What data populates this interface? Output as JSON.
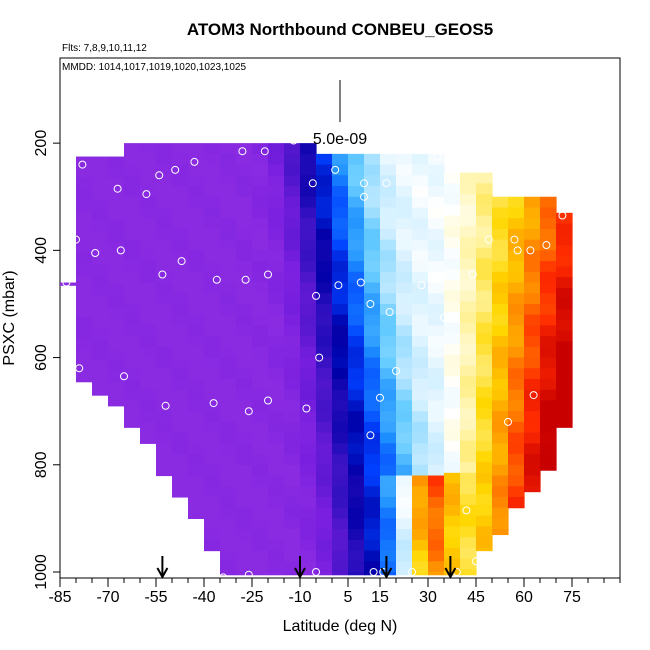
{
  "title": "ATOM3 Northbound CONBEU_GEOS5",
  "flights_text": "Flts: 7,8,9,10,11,12",
  "dates_text": "MMDD: 1014,1017,1019,1020,1023,1025",
  "scale_label": "5.0e-09",
  "chart_data": {
    "type": "heatmap",
    "xlabel": "Latitude (deg N)",
    "ylabel": "PSXC (mbar)",
    "xlim": [
      -85,
      90
    ],
    "ylim": [
      1000,
      30
    ],
    "x_ticks": [
      -85,
      -70,
      -55,
      -40,
      -25,
      -10,
      5,
      15,
      30,
      45,
      60,
      75
    ],
    "x_tick_labels": [
      "-85",
      "-70",
      "-55",
      "-40",
      "-25",
      "-10",
      "5",
      "15",
      "30",
      "45",
      "60",
      "75"
    ],
    "y_ticks": [
      200,
      400,
      600,
      800,
      1000
    ],
    "y_tick_labels": [
      "200",
      "400",
      "600",
      "800",
      "1000"
    ],
    "colorscale": [
      "#8a2be2",
      "#7a1fe0",
      "#5a18d0",
      "#3010c0",
      "#0000a8",
      "#0040ff",
      "#1e90ff",
      "#66ccff",
      "#c8ecff",
      "#ffffff",
      "#fff3a0",
      "#ffd700",
      "#ff8c00",
      "#ff2a00",
      "#c80000"
    ],
    "field_range": [
      0,
      1
    ],
    "bins_lat_width": 5,
    "columns": [
      {
        "lat": -85,
        "p_top": 460,
        "p_bot": 465
      },
      {
        "lat": -80,
        "p_top": 225,
        "p_bot": 645
      },
      {
        "lat": -75,
        "p_top": 225,
        "p_bot": 670
      },
      {
        "lat": -70,
        "p_top": 225,
        "p_bot": 690
      },
      {
        "lat": -65,
        "p_top": 200,
        "p_bot": 730
      },
      {
        "lat": -60,
        "p_top": 200,
        "p_bot": 760
      },
      {
        "lat": -55,
        "p_top": 200,
        "p_bot": 820
      },
      {
        "lat": -50,
        "p_top": 200,
        "p_bot": 860
      },
      {
        "lat": -45,
        "p_top": 200,
        "p_bot": 900
      },
      {
        "lat": -40,
        "p_top": 200,
        "p_bot": 960
      },
      {
        "lat": -35,
        "p_top": 200,
        "p_bot": 1005
      },
      {
        "lat": -30,
        "p_top": 200,
        "p_bot": 1005
      },
      {
        "lat": -25,
        "p_top": 200,
        "p_bot": 1005
      },
      {
        "lat": -20,
        "p_top": 200,
        "p_bot": 1005
      },
      {
        "lat": -15,
        "p_top": 200,
        "p_bot": 1005
      },
      {
        "lat": -10,
        "p_top": 200,
        "p_bot": 1005
      },
      {
        "lat": -5,
        "p_top": 220,
        "p_bot": 1005
      },
      {
        "lat": 0,
        "p_top": 220,
        "p_bot": 1005
      },
      {
        "lat": 5,
        "p_top": 220,
        "p_bot": 1005
      },
      {
        "lat": 10,
        "p_top": 220,
        "p_bot": 1005
      },
      {
        "lat": 15,
        "p_top": 220,
        "p_bot": 1005
      },
      {
        "lat": 20,
        "p_top": 220,
        "p_bot": 1005
      },
      {
        "lat": 25,
        "p_top": 220,
        "p_bot": 1005
      },
      {
        "lat": 30,
        "p_top": 220,
        "p_bot": 1005
      },
      {
        "lat": 35,
        "p_top": 255,
        "p_bot": 1005
      },
      {
        "lat": 40,
        "p_top": 255,
        "p_bot": 1005
      },
      {
        "lat": 45,
        "p_top": 255,
        "p_bot": 960
      },
      {
        "lat": 50,
        "p_top": 300,
        "p_bot": 930
      },
      {
        "lat": 55,
        "p_top": 300,
        "p_bot": 880
      },
      {
        "lat": 60,
        "p_top": 300,
        "p_bot": 850
      },
      {
        "lat": 65,
        "p_top": 300,
        "p_bot": 810
      },
      {
        "lat": 70,
        "p_top": 330,
        "p_bot": 730
      }
    ],
    "observation_points": [
      {
        "lat": -83,
        "p": 460
      },
      {
        "lat": -80,
        "p": 380
      },
      {
        "lat": -79,
        "p": 620
      },
      {
        "lat": -78,
        "p": 240
      },
      {
        "lat": -74,
        "p": 405
      },
      {
        "lat": -67,
        "p": 205
      },
      {
        "lat": -67,
        "p": 285
      },
      {
        "lat": -66,
        "p": 400
      },
      {
        "lat": -65,
        "p": 635
      },
      {
        "lat": -58,
        "p": 295
      },
      {
        "lat": -54,
        "p": 260
      },
      {
        "lat": -53,
        "p": 445
      },
      {
        "lat": -52,
        "p": 690
      },
      {
        "lat": -49,
        "p": 250
      },
      {
        "lat": -47,
        "p": 420
      },
      {
        "lat": -43,
        "p": 235
      },
      {
        "lat": -40,
        "p": 1000
      },
      {
        "lat": -37,
        "p": 685
      },
      {
        "lat": -36,
        "p": 455
      },
      {
        "lat": -34,
        "p": 1010
      },
      {
        "lat": -28,
        "p": 215
      },
      {
        "lat": -27,
        "p": 455
      },
      {
        "lat": -26,
        "p": 700
      },
      {
        "lat": -26,
        "p": 1005
      },
      {
        "lat": -21,
        "p": 215
      },
      {
        "lat": -20,
        "p": 445
      },
      {
        "lat": -20,
        "p": 680
      },
      {
        "lat": -12,
        "p": 195
      },
      {
        "lat": -8,
        "p": 695
      },
      {
        "lat": -6,
        "p": 275
      },
      {
        "lat": -5,
        "p": 485
      },
      {
        "lat": -5,
        "p": 1000
      },
      {
        "lat": -4,
        "p": 600
      },
      {
        "lat": 1,
        "p": 250
      },
      {
        "lat": 2,
        "p": 465
      },
      {
        "lat": 9,
        "p": 460
      },
      {
        "lat": 10,
        "p": 275
      },
      {
        "lat": 10,
        "p": 300
      },
      {
        "lat": 12,
        "p": 500
      },
      {
        "lat": 12,
        "p": 745
      },
      {
        "lat": 13,
        "p": 1000
      },
      {
        "lat": 15,
        "p": 675
      },
      {
        "lat": 16,
        "p": 1000
      },
      {
        "lat": 17,
        "p": 275
      },
      {
        "lat": 18,
        "p": 515
      },
      {
        "lat": 20,
        "p": 625
      },
      {
        "lat": 25,
        "p": 1000
      },
      {
        "lat": 28,
        "p": 465
      },
      {
        "lat": 33,
        "p": 225
      },
      {
        "lat": 35,
        "p": 525
      },
      {
        "lat": 39,
        "p": 1000
      },
      {
        "lat": 42,
        "p": 885
      },
      {
        "lat": 44,
        "p": 445
      },
      {
        "lat": 49,
        "p": 380
      },
      {
        "lat": 55,
        "p": 720
      },
      {
        "lat": 57,
        "p": 380
      },
      {
        "lat": 58,
        "p": 400
      },
      {
        "lat": 62,
        "p": 400
      },
      {
        "lat": 63,
        "p": 670
      },
      {
        "lat": 67,
        "p": 390
      },
      {
        "lat": 72,
        "p": 335
      },
      {
        "lat": 45,
        "p": 980
      }
    ],
    "flight_arrows_lat": [
      -53,
      -10,
      17,
      37
    ]
  }
}
